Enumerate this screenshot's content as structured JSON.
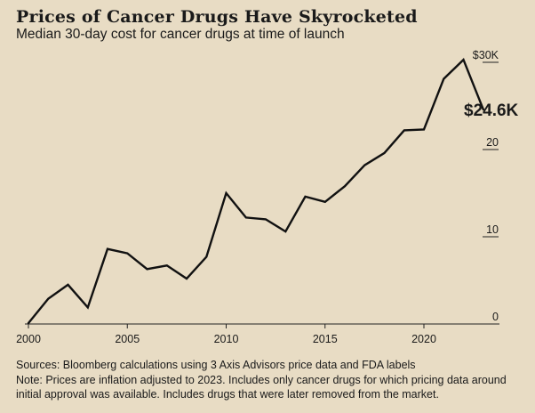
{
  "title": "Prices of Cancer Drugs Have Skyrocketed",
  "subtitle": "Median 30-day cost for cancer drugs at time of launch",
  "footer": {
    "source": "Sources: Bloomberg calculations using 3 Axis Advisors price data and FDA labels",
    "note": "Note: Prices are inflation adjusted to 2023. Includes only cancer drugs for which pricing data around initial approval was available. Includes drugs that were later removed from the market."
  },
  "colors": {
    "background": "#e8dcc4",
    "line": "#111111",
    "text": "#1a1a1a"
  },
  "chart_data": {
    "type": "line",
    "title": "Prices of Cancer Drugs Have Skyrocketed",
    "subtitle": "Median 30-day cost for cancer drugs at time of launch",
    "xlabel": "",
    "ylabel": "",
    "xlim": [
      2000,
      2023
    ],
    "ylim": [
      0,
      30
    ],
    "x_ticks": [
      2000,
      2005,
      2010,
      2015,
      2020
    ],
    "y_ticks": [
      {
        "value": 0,
        "label": "0"
      },
      {
        "value": 10,
        "label": "10"
      },
      {
        "value": 20,
        "label": "20"
      },
      {
        "value": 30,
        "label": "$30K"
      }
    ],
    "grid": false,
    "series": [
      {
        "x": [
          2000,
          2001,
          2002,
          2003,
          2004,
          2005,
          2006,
          2007,
          2008,
          2009,
          2010,
          2011,
          2012,
          2013,
          2014,
          2015,
          2016,
          2017,
          2018,
          2019,
          2020,
          2021,
          2022,
          2023
        ],
        "y": [
          0.1,
          2.9,
          4.5,
          1.9,
          8.6,
          8.1,
          6.3,
          6.7,
          5.2,
          7.7,
          15.0,
          12.2,
          12.0,
          10.6,
          14.6,
          14.0,
          15.8,
          18.2,
          19.6,
          22.2,
          22.3,
          28.1,
          30.3,
          24.6
        ]
      }
    ],
    "annotations": [
      {
        "x": 2023,
        "y": 24.6,
        "text": "$24.6K"
      }
    ]
  }
}
